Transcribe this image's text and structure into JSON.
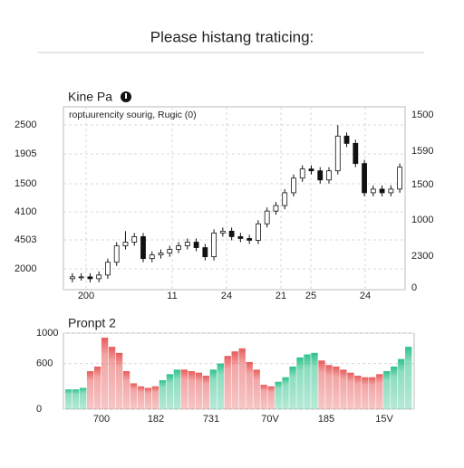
{
  "title": "Please histang traticing:",
  "chart_data": [
    {
      "type": "candlestick",
      "title": "Kine Pa",
      "subtitle": "roptuurencity sourig, Rugic (0)",
      "y_labels": [
        "2500",
        "1905",
        "1500",
        "4100",
        "4503",
        "2000"
      ],
      "y2_labels": [
        "1500",
        "1590",
        "1500",
        "1000",
        "2300",
        "0"
      ],
      "x_labels": [
        "200",
        "11",
        "24",
        "21",
        "25",
        "24"
      ],
      "ylim": [
        0,
        100
      ],
      "grid": true,
      "color": "#111111",
      "open": [
        6,
        7,
        7,
        6,
        8,
        15,
        24,
        26,
        29,
        17,
        19,
        20,
        22,
        24,
        26,
        23,
        18,
        31,
        32,
        29,
        28,
        27,
        36,
        43,
        46,
        53,
        61,
        66,
        65,
        60,
        65,
        84,
        80,
        69,
        53,
        55,
        53,
        55
      ],
      "high": [
        9,
        9,
        9,
        10,
        17,
        26,
        32,
        31,
        31,
        21,
        22,
        24,
        26,
        28,
        28,
        25,
        33,
        34,
        34,
        31,
        30,
        38,
        45,
        48,
        55,
        63,
        68,
        68,
        67,
        67,
        90,
        86,
        82,
        71,
        57,
        57,
        57,
        69
      ],
      "low": [
        4,
        5,
        4,
        4,
        6,
        13,
        22,
        24,
        15,
        15,
        17,
        18,
        20,
        22,
        21,
        16,
        16,
        29,
        27,
        26,
        25,
        25,
        34,
        41,
        44,
        51,
        59,
        63,
        58,
        58,
        63,
        78,
        67,
        51,
        51,
        51,
        51,
        53
      ],
      "close": [
        7,
        7,
        6,
        8,
        15,
        24,
        26,
        29,
        17,
        19,
        20,
        22,
        24,
        26,
        23,
        18,
        31,
        32,
        29,
        28,
        27,
        36,
        43,
        46,
        53,
        61,
        66,
        65,
        60,
        65,
        84,
        80,
        69,
        53,
        55,
        53,
        55,
        67
      ]
    },
    {
      "type": "bar",
      "title": "Pronpt 2",
      "ylim": [
        0,
        1000
      ],
      "yticks": [
        0,
        600,
        1000
      ],
      "grid": true,
      "x_labels": [
        "700",
        "182",
        "731",
        "70V",
        "185",
        "15V"
      ],
      "values": [
        260,
        260,
        280,
        500,
        560,
        940,
        820,
        740,
        500,
        340,
        300,
        280,
        300,
        380,
        460,
        520,
        520,
        500,
        480,
        440,
        520,
        600,
        700,
        760,
        800,
        620,
        520,
        320,
        300,
        360,
        420,
        560,
        680,
        720,
        740,
        640,
        580,
        560,
        520,
        480,
        440,
        420,
        420,
        460,
        500,
        560,
        660,
        820
      ],
      "colors": [
        "#2fc28b",
        "#2fc28b",
        "#2fc28b",
        "#e85c5c",
        "#e85c5c",
        "#e85c5c",
        "#e85c5c",
        "#e85c5c",
        "#e85c5c",
        "#e85c5c",
        "#e85c5c",
        "#e85c5c",
        "#e85c5c",
        "#2fc28b",
        "#2fc28b",
        "#2fc28b",
        "#e85c5c",
        "#e85c5c",
        "#e85c5c",
        "#e85c5c",
        "#2fc28b",
        "#2fc28b",
        "#e85c5c",
        "#e85c5c",
        "#e85c5c",
        "#e85c5c",
        "#e85c5c",
        "#e85c5c",
        "#e85c5c",
        "#2fc28b",
        "#2fc28b",
        "#2fc28b",
        "#2fc28b",
        "#2fc28b",
        "#2fc28b",
        "#e85c5c",
        "#e85c5c",
        "#e85c5c",
        "#e85c5c",
        "#e85c5c",
        "#e85c5c",
        "#e85c5c",
        "#e85c5c",
        "#e85c5c",
        "#2fc28b",
        "#2fc28b",
        "#2fc28b",
        "#2fc28b"
      ]
    }
  ]
}
